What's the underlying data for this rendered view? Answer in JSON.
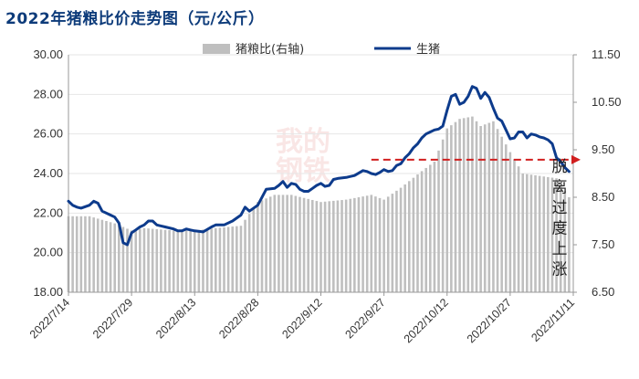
{
  "title": "2022年猪粮比价走势图（元/公斤）",
  "watermark": [
    "我的",
    "钢铁"
  ],
  "colors": {
    "line": "#0d3b8c",
    "bars": "#bfbfbf",
    "arrow": "#d11f1f",
    "title": "#0d3b7a"
  },
  "chart_data": {
    "type": "bar+line",
    "title": "2022年猪粮比价走势图（元/公斤）",
    "legend": [
      "猪粮比(右轴)",
      "生猪"
    ],
    "legend_position": "top",
    "y_left": {
      "ticks": [
        "18.00",
        "20.00",
        "22.00",
        "24.00",
        "26.00",
        "28.00",
        "30.00"
      ],
      "range": [
        18,
        30
      ]
    },
    "y_right": {
      "ticks": [
        "6.50",
        "7.50",
        "8.50",
        "9.50",
        "10.50",
        "11.50"
      ],
      "range": [
        6.5,
        11.5
      ]
    },
    "x_ticks": [
      "2022/7/14",
      "2022/7/29",
      "2022/8/13",
      "2022/8/28",
      "2022/9/12",
      "2022/9/27",
      "2022/10/12",
      "2022/10/27",
      "2022/11/11"
    ],
    "x_range": [
      "2022-07-14",
      "2022-11-11"
    ],
    "series": [
      {
        "name": "生猪",
        "kind": "line",
        "axis": "left",
        "points": [
          [
            "2022-07-14",
            22.6
          ],
          [
            "2022-07-15",
            22.4
          ],
          [
            "2022-07-16",
            22.3
          ],
          [
            "2022-07-17",
            22.25
          ],
          [
            "2022-07-19",
            22.4
          ],
          [
            "2022-07-20",
            22.6
          ],
          [
            "2022-07-21",
            22.5
          ],
          [
            "2022-07-22",
            22.1
          ],
          [
            "2022-07-24",
            21.9
          ],
          [
            "2022-07-25",
            21.8
          ],
          [
            "2022-07-26",
            21.5
          ],
          [
            "2022-07-27",
            20.5
          ],
          [
            "2022-07-28",
            20.4
          ],
          [
            "2022-07-29",
            21.0
          ],
          [
            "2022-07-30",
            21.15
          ],
          [
            "2022-07-31",
            21.3
          ],
          [
            "2022-08-01",
            21.4
          ],
          [
            "2022-08-02",
            21.6
          ],
          [
            "2022-08-03",
            21.6
          ],
          [
            "2022-08-04",
            21.4
          ],
          [
            "2022-08-05",
            21.35
          ],
          [
            "2022-08-06",
            21.3
          ],
          [
            "2022-08-08",
            21.2
          ],
          [
            "2022-08-09",
            21.1
          ],
          [
            "2022-08-10",
            21.1
          ],
          [
            "2022-08-11",
            21.2
          ],
          [
            "2022-08-12",
            21.15
          ],
          [
            "2022-08-13",
            21.1
          ],
          [
            "2022-08-15",
            21.05
          ],
          [
            "2022-08-17",
            21.3
          ],
          [
            "2022-08-18",
            21.4
          ],
          [
            "2022-08-20",
            21.4
          ],
          [
            "2022-08-22",
            21.6
          ],
          [
            "2022-08-24",
            21.9
          ],
          [
            "2022-08-25",
            22.3
          ],
          [
            "2022-08-26",
            22.1
          ],
          [
            "2022-08-28",
            22.4
          ],
          [
            "2022-08-30",
            23.2
          ],
          [
            "2022-09-01",
            23.25
          ],
          [
            "2022-09-02",
            23.4
          ],
          [
            "2022-09-03",
            23.6
          ],
          [
            "2022-09-04",
            23.3
          ],
          [
            "2022-09-05",
            23.5
          ],
          [
            "2022-09-06",
            23.45
          ],
          [
            "2022-09-07",
            23.2
          ],
          [
            "2022-09-08",
            23.1
          ],
          [
            "2022-09-09",
            23.1
          ],
          [
            "2022-09-10",
            23.25
          ],
          [
            "2022-09-11",
            23.4
          ],
          [
            "2022-09-12",
            23.5
          ],
          [
            "2022-09-13",
            23.35
          ],
          [
            "2022-09-14",
            23.4
          ],
          [
            "2022-09-15",
            23.7
          ],
          [
            "2022-09-16",
            23.75
          ],
          [
            "2022-09-18",
            23.8
          ],
          [
            "2022-09-20",
            23.9
          ],
          [
            "2022-09-22",
            24.15
          ],
          [
            "2022-09-23",
            24.1
          ],
          [
            "2022-09-24",
            24.0
          ],
          [
            "2022-09-25",
            23.95
          ],
          [
            "2022-09-26",
            24.05
          ],
          [
            "2022-09-27",
            24.2
          ],
          [
            "2022-09-28",
            24.1
          ],
          [
            "2022-09-29",
            24.15
          ],
          [
            "2022-09-30",
            24.4
          ],
          [
            "2022-10-01",
            24.5
          ],
          [
            "2022-10-02",
            24.8
          ],
          [
            "2022-10-03",
            25.0
          ],
          [
            "2022-10-04",
            25.3
          ],
          [
            "2022-10-05",
            25.5
          ],
          [
            "2022-10-06",
            25.8
          ],
          [
            "2022-10-07",
            26.0
          ],
          [
            "2022-10-08",
            26.1
          ],
          [
            "2022-10-09",
            26.2
          ],
          [
            "2022-10-10",
            26.25
          ],
          [
            "2022-10-11",
            26.4
          ],
          [
            "2022-10-12",
            27.2
          ],
          [
            "2022-10-13",
            27.9
          ],
          [
            "2022-10-14",
            28.0
          ],
          [
            "2022-10-15",
            27.5
          ],
          [
            "2022-10-16",
            27.6
          ],
          [
            "2022-10-17",
            27.9
          ],
          [
            "2022-10-18",
            28.4
          ],
          [
            "2022-10-19",
            28.3
          ],
          [
            "2022-10-20",
            27.8
          ],
          [
            "2022-10-21",
            28.1
          ],
          [
            "2022-10-22",
            27.85
          ],
          [
            "2022-10-23",
            27.3
          ],
          [
            "2022-10-24",
            26.8
          ],
          [
            "2022-10-25",
            26.65
          ],
          [
            "2022-10-26",
            26.2
          ],
          [
            "2022-10-27",
            25.75
          ],
          [
            "2022-10-28",
            25.8
          ],
          [
            "2022-10-29",
            26.1
          ],
          [
            "2022-10-30",
            26.1
          ],
          [
            "2022-10-31",
            25.8
          ],
          [
            "2022-11-01",
            26.0
          ],
          [
            "2022-11-02",
            25.95
          ],
          [
            "2022-11-03",
            25.85
          ],
          [
            "2022-11-04",
            25.8
          ],
          [
            "2022-11-05",
            25.7
          ],
          [
            "2022-11-06",
            25.5
          ],
          [
            "2022-11-07",
            24.8
          ],
          [
            "2022-11-08",
            24.6
          ],
          [
            "2022-11-09",
            24.3
          ],
          [
            "2022-11-10",
            24.1
          ]
        ]
      },
      {
        "name": "猪粮比(右轴)",
        "kind": "bar",
        "axis": "right",
        "points": [
          [
            "2022-07-14",
            8.1
          ],
          [
            "2022-07-19",
            8.1
          ],
          [
            "2022-07-25",
            7.95
          ],
          [
            "2022-07-29",
            7.8
          ],
          [
            "2022-08-01",
            7.85
          ],
          [
            "2022-08-08",
            7.8
          ],
          [
            "2022-08-13",
            7.8
          ],
          [
            "2022-08-18",
            7.85
          ],
          [
            "2022-08-24",
            7.9
          ],
          [
            "2022-08-28",
            8.4
          ],
          [
            "2022-09-01",
            8.55
          ],
          [
            "2022-09-05",
            8.55
          ],
          [
            "2022-09-12",
            8.4
          ],
          [
            "2022-09-18",
            8.45
          ],
          [
            "2022-09-24",
            8.55
          ],
          [
            "2022-09-27",
            8.45
          ],
          [
            "2022-10-01",
            8.7
          ],
          [
            "2022-10-06",
            9.05
          ],
          [
            "2022-10-09",
            9.25
          ],
          [
            "2022-10-12",
            9.95
          ],
          [
            "2022-10-15",
            10.15
          ],
          [
            "2022-10-18",
            10.2
          ],
          [
            "2022-10-20",
            10.0
          ],
          [
            "2022-10-23",
            10.1
          ],
          [
            "2022-10-27",
            9.45
          ],
          [
            "2022-10-30",
            9.0
          ],
          [
            "2022-11-03",
            8.95
          ],
          [
            "2022-11-07",
            8.9
          ],
          [
            "2022-11-10",
            8.5
          ]
        ]
      }
    ],
    "annotation": {
      "text": "脱离过度上涨",
      "arrow": {
        "from": [
          "2022-09-24",
          24.7
        ],
        "to": [
          "2022-11-11",
          24.7
        ],
        "style": "dashed"
      }
    }
  }
}
